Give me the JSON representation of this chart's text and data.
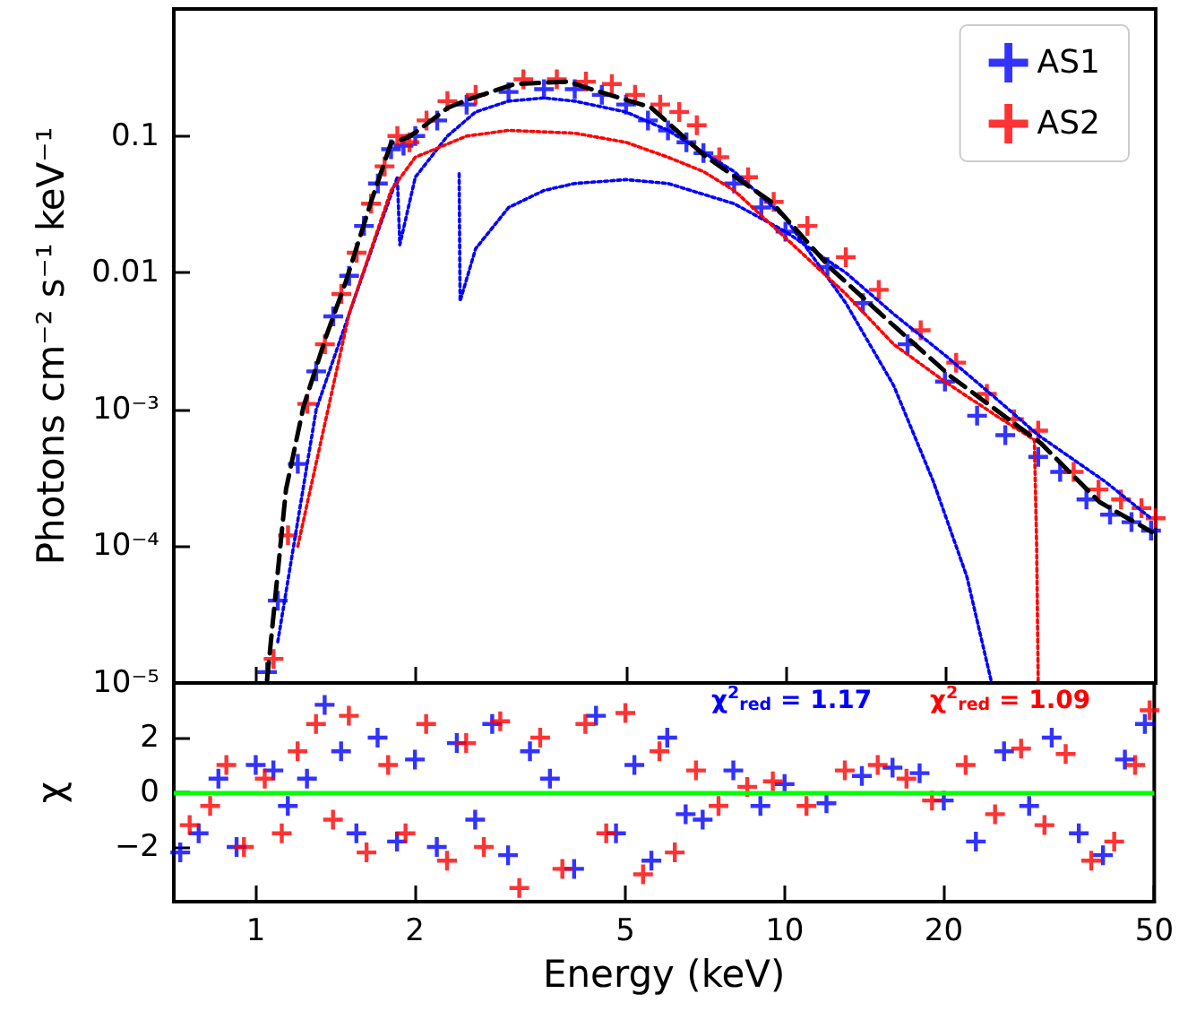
{
  "chart_data": [
    {
      "type": "scatter",
      "ylabel": "Photons cm⁻² s⁻¹ keV⁻¹",
      "log": "xy",
      "xlim": [
        0.7,
        50
      ],
      "xticks": [
        1,
        2,
        5,
        10,
        20,
        50
      ],
      "ylim": [
        1e-05,
        0.85
      ],
      "yticks": [
        {
          "value": 1e-05,
          "label": "10⁻⁵"
        },
        {
          "value": 0.0001,
          "label": "10⁻⁴"
        },
        {
          "value": 0.001,
          "label": "10⁻³"
        },
        0.01,
        0.1
      ],
      "tick_labels": "y",
      "legend": "top right",
      "marker": "cross",
      "series": [
        {
          "name": "AS1",
          "color": "#0000ff",
          "x": [
            1.05,
            1.1,
            1.2,
            1.3,
            1.4,
            1.5,
            1.6,
            1.7,
            1.8,
            1.9,
            2.0,
            2.2,
            2.5,
            3.0,
            3.5,
            4.0,
            4.5,
            5.0,
            5.5,
            6.0,
            6.5,
            7.0,
            8,
            9,
            10,
            12,
            14,
            17,
            20,
            23,
            26,
            30,
            33,
            37,
            41,
            45,
            49
          ],
          "values": [
            1.2e-05,
            4e-05,
            0.0004,
            0.0019,
            0.0048,
            0.0095,
            0.022,
            0.045,
            0.08,
            0.085,
            0.1,
            0.13,
            0.17,
            0.21,
            0.22,
            0.22,
            0.2,
            0.17,
            0.13,
            0.11,
            0.09,
            0.075,
            0.045,
            0.03,
            0.02,
            0.011,
            0.006,
            0.003,
            0.0016,
            0.0009,
            0.00065,
            0.00045,
            0.00035,
            0.00022,
            0.00017,
            0.00015,
            0.00013
          ]
        },
        {
          "name": "AS2",
          "color": "#ff0000",
          "x": [
            1.08,
            1.15,
            1.25,
            1.35,
            1.45,
            1.55,
            1.65,
            1.75,
            1.85,
            1.95,
            2.1,
            2.3,
            2.6,
            3.2,
            3.7,
            4.2,
            4.7,
            5.2,
            5.8,
            6.3,
            6.8,
            7.5,
            8.5,
            9.5,
            11,
            13,
            15,
            18,
            21,
            24,
            27,
            30,
            35,
            39,
            43,
            47,
            50
          ],
          "values": [
            1.5e-05,
            0.00012,
            0.0011,
            0.003,
            0.007,
            0.014,
            0.032,
            0.06,
            0.1,
            0.09,
            0.13,
            0.18,
            0.2,
            0.26,
            0.26,
            0.25,
            0.24,
            0.2,
            0.17,
            0.15,
            0.12,
            0.07,
            0.05,
            0.033,
            0.022,
            0.013,
            0.0075,
            0.0038,
            0.0022,
            0.0013,
            0.00085,
            0.0007,
            0.00035,
            0.00026,
            0.00022,
            0.00019,
            0.00016
          ]
        },
        {
          "type": "line",
          "marker": "none",
          "line_style": "dotted",
          "color": "#0000ff",
          "x": [
            1.1,
            1.3,
            1.5,
            1.7,
            1.85,
            1.87,
            2.0,
            2.3,
            2.6,
            3.0,
            3.5,
            4.0,
            5.0,
            6.0,
            8.0,
            10,
            13,
            16,
            19,
            22,
            24.5
          ],
          "values": [
            2e-05,
            0.001,
            0.005,
            0.02,
            0.05,
            0.016,
            0.05,
            0.1,
            0.15,
            0.18,
            0.19,
            0.18,
            0.15,
            0.11,
            0.055,
            0.025,
            0.006,
            0.0015,
            0.0003,
            6e-05,
            1e-05
          ]
        },
        {
          "type": "line",
          "marker": "none",
          "line_style": "dotted",
          "color": "#0000ff",
          "x": [
            2.42,
            2.43,
            2.6,
            3.0,
            3.5,
            4.0,
            5.0,
            6.0,
            8.0,
            10,
            13,
            16,
            20,
            25,
            30,
            40,
            49
          ],
          "values": [
            0.053,
            0.0062,
            0.015,
            0.03,
            0.04,
            0.045,
            0.048,
            0.045,
            0.032,
            0.02,
            0.01,
            0.005,
            0.0025,
            0.0012,
            0.00065,
            0.0003,
            0.00016
          ]
        },
        {
          "type": "line",
          "marker": "none",
          "line_style": "dotted",
          "color": "#ff0000",
          "x": [
            1.2,
            1.5,
            1.8,
            2.0,
            2.5,
            3.0,
            4.0,
            5.0,
            6.0,
            7.0,
            8.0,
            10,
            13,
            16,
            20,
            25,
            29.5,
            29.8,
            30
          ],
          "values": [
            0.0001,
            0.005,
            0.04,
            0.07,
            0.1,
            0.11,
            0.105,
            0.09,
            0.07,
            0.055,
            0.04,
            0.018,
            0.007,
            0.003,
            0.0016,
            0.0009,
            0.0006,
            0.0001,
            1e-05
          ]
        },
        {
          "type": "line",
          "marker": "none",
          "line_style": "dashed",
          "color": "#000000",
          "x": [
            1.05,
            1.14,
            1.23,
            1.36,
            1.48,
            1.65,
            1.8,
            1.93,
            2.02,
            2.31,
            2.55,
            3.08,
            3.89,
            4.3,
            5.57,
            7.03,
            9.4,
            12.2,
            15.8,
            20.5,
            30.3,
            39.2,
            49.2
          ],
          "values": [
            1.05e-05,
            0.00026,
            0.00105,
            0.0035,
            0.0087,
            0.033,
            0.089,
            0.097,
            0.109,
            0.162,
            0.188,
            0.24,
            0.25,
            0.22,
            0.162,
            0.072,
            0.033,
            0.0107,
            0.0043,
            0.00175,
            0.00057,
            0.00021,
            0.000127
          ]
        }
      ]
    },
    {
      "type": "scatter",
      "xlabel": "Energy (keV)",
      "ylabel": "χ",
      "log": "x",
      "xlim": [
        0.7,
        50
      ],
      "xticks": [
        1,
        2,
        5,
        10,
        20,
        50
      ],
      "ylim": [
        -4,
        4
      ],
      "yticks": [
        {
          "value": -2,
          "label": "−2"
        },
        0,
        2
      ],
      "marker": "cross",
      "annotations": [
        "χ$^{2}$$_{red}$ = 1.17",
        "χ$^{2}$$_{red}$ = 1.09"
      ],
      "ref_lines": [
        {
          "axis": "y",
          "value": 0,
          "color": "#00ff00"
        }
      ],
      "series": [
        {
          "color": "#0000ff",
          "x": [
            0.72,
            0.78,
            0.85,
            0.92,
            1.0,
            1.08,
            1.15,
            1.25,
            1.35,
            1.45,
            1.55,
            1.7,
            1.85,
            2.0,
            2.2,
            2.4,
            2.6,
            2.8,
            3.0,
            3.3,
            3.6,
            4.0,
            4.4,
            4.8,
            5.2,
            5.6,
            6.0,
            6.5,
            7.0,
            8.0,
            9.0,
            10,
            12,
            14,
            16,
            18,
            20,
            23,
            26,
            29,
            32,
            36,
            40,
            44,
            48
          ],
          "values": [
            -2.2,
            -1.5,
            0.5,
            -2.0,
            1.0,
            0.8,
            -0.5,
            0.5,
            3.2,
            1.5,
            -1.5,
            2.0,
            -1.8,
            1.2,
            -2.0,
            1.8,
            -1.0,
            2.5,
            -2.3,
            1.5,
            0.5,
            -2.8,
            2.8,
            -1.5,
            1.0,
            -2.5,
            2.0,
            -0.8,
            -1.0,
            0.8,
            -0.5,
            0.3,
            -0.4,
            0.6,
            0.9,
            0.7,
            -0.3,
            -1.8,
            1.5,
            -0.5,
            2.0,
            -1.5,
            -2.3,
            1.2,
            2.5
          ]
        },
        {
          "color": "#ff0000",
          "x": [
            0.75,
            0.82,
            0.88,
            0.95,
            1.04,
            1.12,
            1.2,
            1.3,
            1.4,
            1.5,
            1.62,
            1.78,
            1.92,
            2.1,
            2.3,
            2.5,
            2.7,
            2.9,
            3.15,
            3.45,
            3.8,
            4.2,
            4.6,
            5.0,
            5.4,
            5.8,
            6.2,
            6.8,
            7.5,
            8.5,
            9.5,
            11,
            13,
            15,
            17,
            19,
            22,
            25,
            28,
            31,
            34,
            38,
            42,
            46,
            49
          ],
          "values": [
            -1.2,
            -0.5,
            1.0,
            -2.0,
            0.5,
            -1.5,
            1.5,
            2.5,
            -1.0,
            2.8,
            -2.2,
            1.0,
            -1.5,
            2.5,
            -2.5,
            1.8,
            -2.0,
            2.6,
            -3.5,
            2.0,
            -2.8,
            2.5,
            -1.5,
            2.9,
            -3.0,
            1.5,
            -2.2,
            0.8,
            -0.5,
            0.2,
            0.4,
            -0.5,
            0.8,
            1.0,
            0.5,
            -0.3,
            1.0,
            -0.8,
            1.6,
            -1.2,
            1.4,
            -2.5,
            -1.8,
            1.0,
            3.0
          ]
        }
      ]
    }
  ]
}
